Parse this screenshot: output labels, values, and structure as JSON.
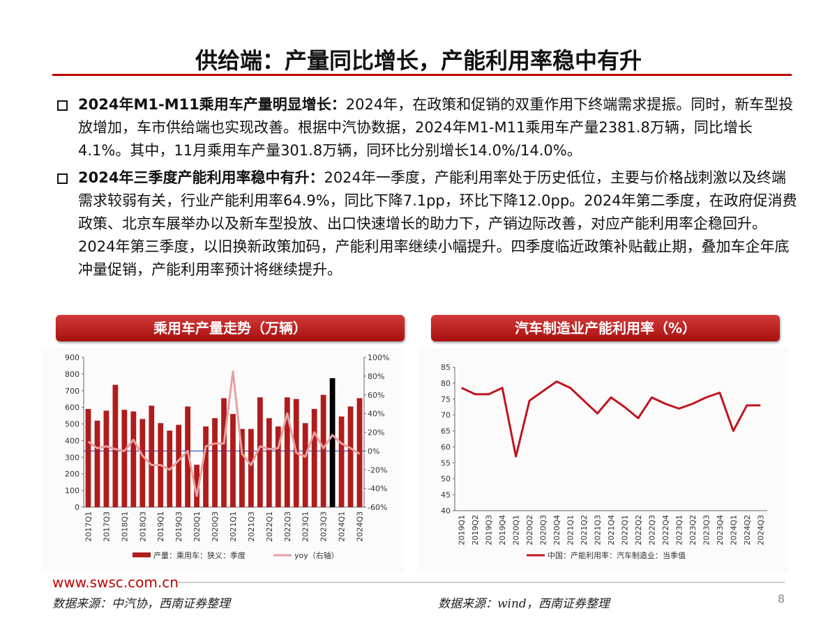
{
  "title": "供给端：产量同比增长，产能利用率稳中有升",
  "bullets": [
    {
      "heading": "2024年M1-M11乘用车产量明显增长：",
      "text": "2024年，在政策和促销的双重作用下终端需求提振。同时，新车型投放增加，车市供给端也实现改善。根据中汽协数据，2024年M1-M11乘用车产量2381.8万辆，同比增长4.1%。其中，11月乘用车产量301.8万辆，同环比分别增长14.0%/14.0%。"
    },
    {
      "heading": "2024年三季度产能利用率稳中有升：",
      "text": "2024年一季度，产能利用率处于历史低位，主要与价格战刺激以及终端需求较弱有关，行业产能利用率64.9%，同比下降7.1pp，环比下降12.0pp。2024年第二季度，在政府促消费政策、北京车展举办以及新车型投放、出口快速增长的助力下，产销边际改善，对应产能利用率企稳回升。2024年第三季度，以旧换新政策加码，产能利用率继续小幅提升。四季度临近政策补贴截止期，叠加车企年底冲量促销，产能利用率预计将继续提升。"
    }
  ],
  "chart_data": [
    {
      "type": "bar",
      "title": "乘用车产量走势（万辆）",
      "categories": [
        "2017Q1",
        null,
        "2017Q3",
        null,
        "2018Q1",
        null,
        "2018Q3",
        null,
        "2019Q1",
        null,
        "2019Q3",
        null,
        "2020Q1",
        null,
        "2020Q3",
        null,
        "2021Q1",
        null,
        "2021Q3",
        null,
        "2022Q1",
        null,
        "2022Q3",
        null,
        "2023Q1",
        null,
        "2023Q3",
        null,
        "2024Q1",
        null,
        "2024Q3"
      ],
      "series": [
        {
          "name": "产量：乘用车：狭义：季度",
          "color": "#b01c1c",
          "type": "bar",
          "colors": [
            "#b01c1c",
            "#b01c1c",
            "#b01c1c",
            "#b01c1c",
            "#b01c1c",
            "#b01c1c",
            "#b01c1c",
            "#b01c1c",
            "#b01c1c",
            "#b01c1c",
            "#b01c1c",
            "#b01c1c",
            "#b01c1c",
            "#b01c1c",
            "#b01c1c",
            "#b01c1c",
            "#b01c1c",
            "#b01c1c",
            "#b01c1c",
            "#b01c1c",
            "#b01c1c",
            "#b01c1c",
            "#b01c1c",
            "#b01c1c",
            "#b01c1c",
            "#b01c1c",
            "#b01c1c",
            "#000000",
            "#b01c1c",
            "#b01c1c",
            "#b01c1c"
          ],
          "values": [
            590,
            520,
            580,
            735,
            585,
            575,
            530,
            610,
            505,
            460,
            495,
            605,
            255,
            485,
            535,
            655,
            560,
            470,
            470,
            660,
            535,
            485,
            660,
            650,
            505,
            590,
            675,
            775,
            545,
            605,
            655
          ]
        },
        {
          "name": "yoy（右轴）",
          "color": "#e8a0a0",
          "type": "line",
          "axis": "y2",
          "values": [
            10,
            3,
            5,
            2,
            0,
            12,
            -5,
            -15,
            -15,
            -20,
            -10,
            0,
            -48,
            5,
            8,
            8,
            85,
            -3,
            -15,
            5,
            2,
            3,
            40,
            -2,
            -6,
            20,
            3,
            17,
            8,
            3,
            -3
          ]
        }
      ],
      "ylim": [
        0,
        900
      ],
      "yticks": [
        0,
        100,
        200,
        300,
        400,
        500,
        600,
        700,
        800,
        900
      ],
      "y2lim": [
        -60,
        100
      ],
      "y2ticks": [
        {
          "value": -60,
          "label": "-60%"
        },
        {
          "value": -40,
          "label": "-40%"
        },
        {
          "value": -20,
          "label": "-20%"
        },
        {
          "value": 0,
          "label": "0%"
        },
        {
          "value": 20,
          "label": "20%"
        },
        {
          "value": 40,
          "label": "40%"
        },
        {
          "value": 60,
          "label": "60%"
        },
        {
          "value": 80,
          "label": "80%"
        },
        {
          "value": 100,
          "label": "100%"
        }
      ],
      "legend": "bottom",
      "grid": false
    },
    {
      "type": "line",
      "title": "汽车制造业产能利用率（%）",
      "categories": [
        "2019Q1",
        "2019Q2",
        "2019Q3",
        "2019Q4",
        "2020Q1",
        "2020Q2",
        "2020Q3",
        "2020Q4",
        "2021Q1",
        "2021Q2",
        "2021Q3",
        "2021Q4",
        "2022Q1",
        "2022Q2",
        "2022Q3",
        "2022Q4",
        "2023Q1",
        "2023Q2",
        "2023Q3",
        "2023Q4",
        "2024Q1",
        "2024Q2",
        "2024Q3"
      ],
      "series": [
        {
          "name": "中国：产能利用率：汽车制造业：当季值",
          "color": "#c0141e",
          "values": [
            78.5,
            76.5,
            76.5,
            78.5,
            57,
            74.5,
            77.5,
            80.5,
            78.5,
            74.5,
            70.5,
            75.5,
            72.5,
            69,
            75.5,
            73.5,
            72,
            73.5,
            75.5,
            77,
            65,
            73,
            73
          ]
        }
      ],
      "ylim": [
        40,
        85
      ],
      "yticks": [
        40,
        45,
        50,
        55,
        60,
        65,
        70,
        75,
        80,
        85
      ],
      "legend": "bottom",
      "grid": false
    }
  ],
  "footer": {
    "url": "www.swsc.com.cn",
    "source_left": "数据来源：中汽协，西南证券整理",
    "source_right": "数据来源：wind，西南证券整理",
    "page": "8"
  }
}
